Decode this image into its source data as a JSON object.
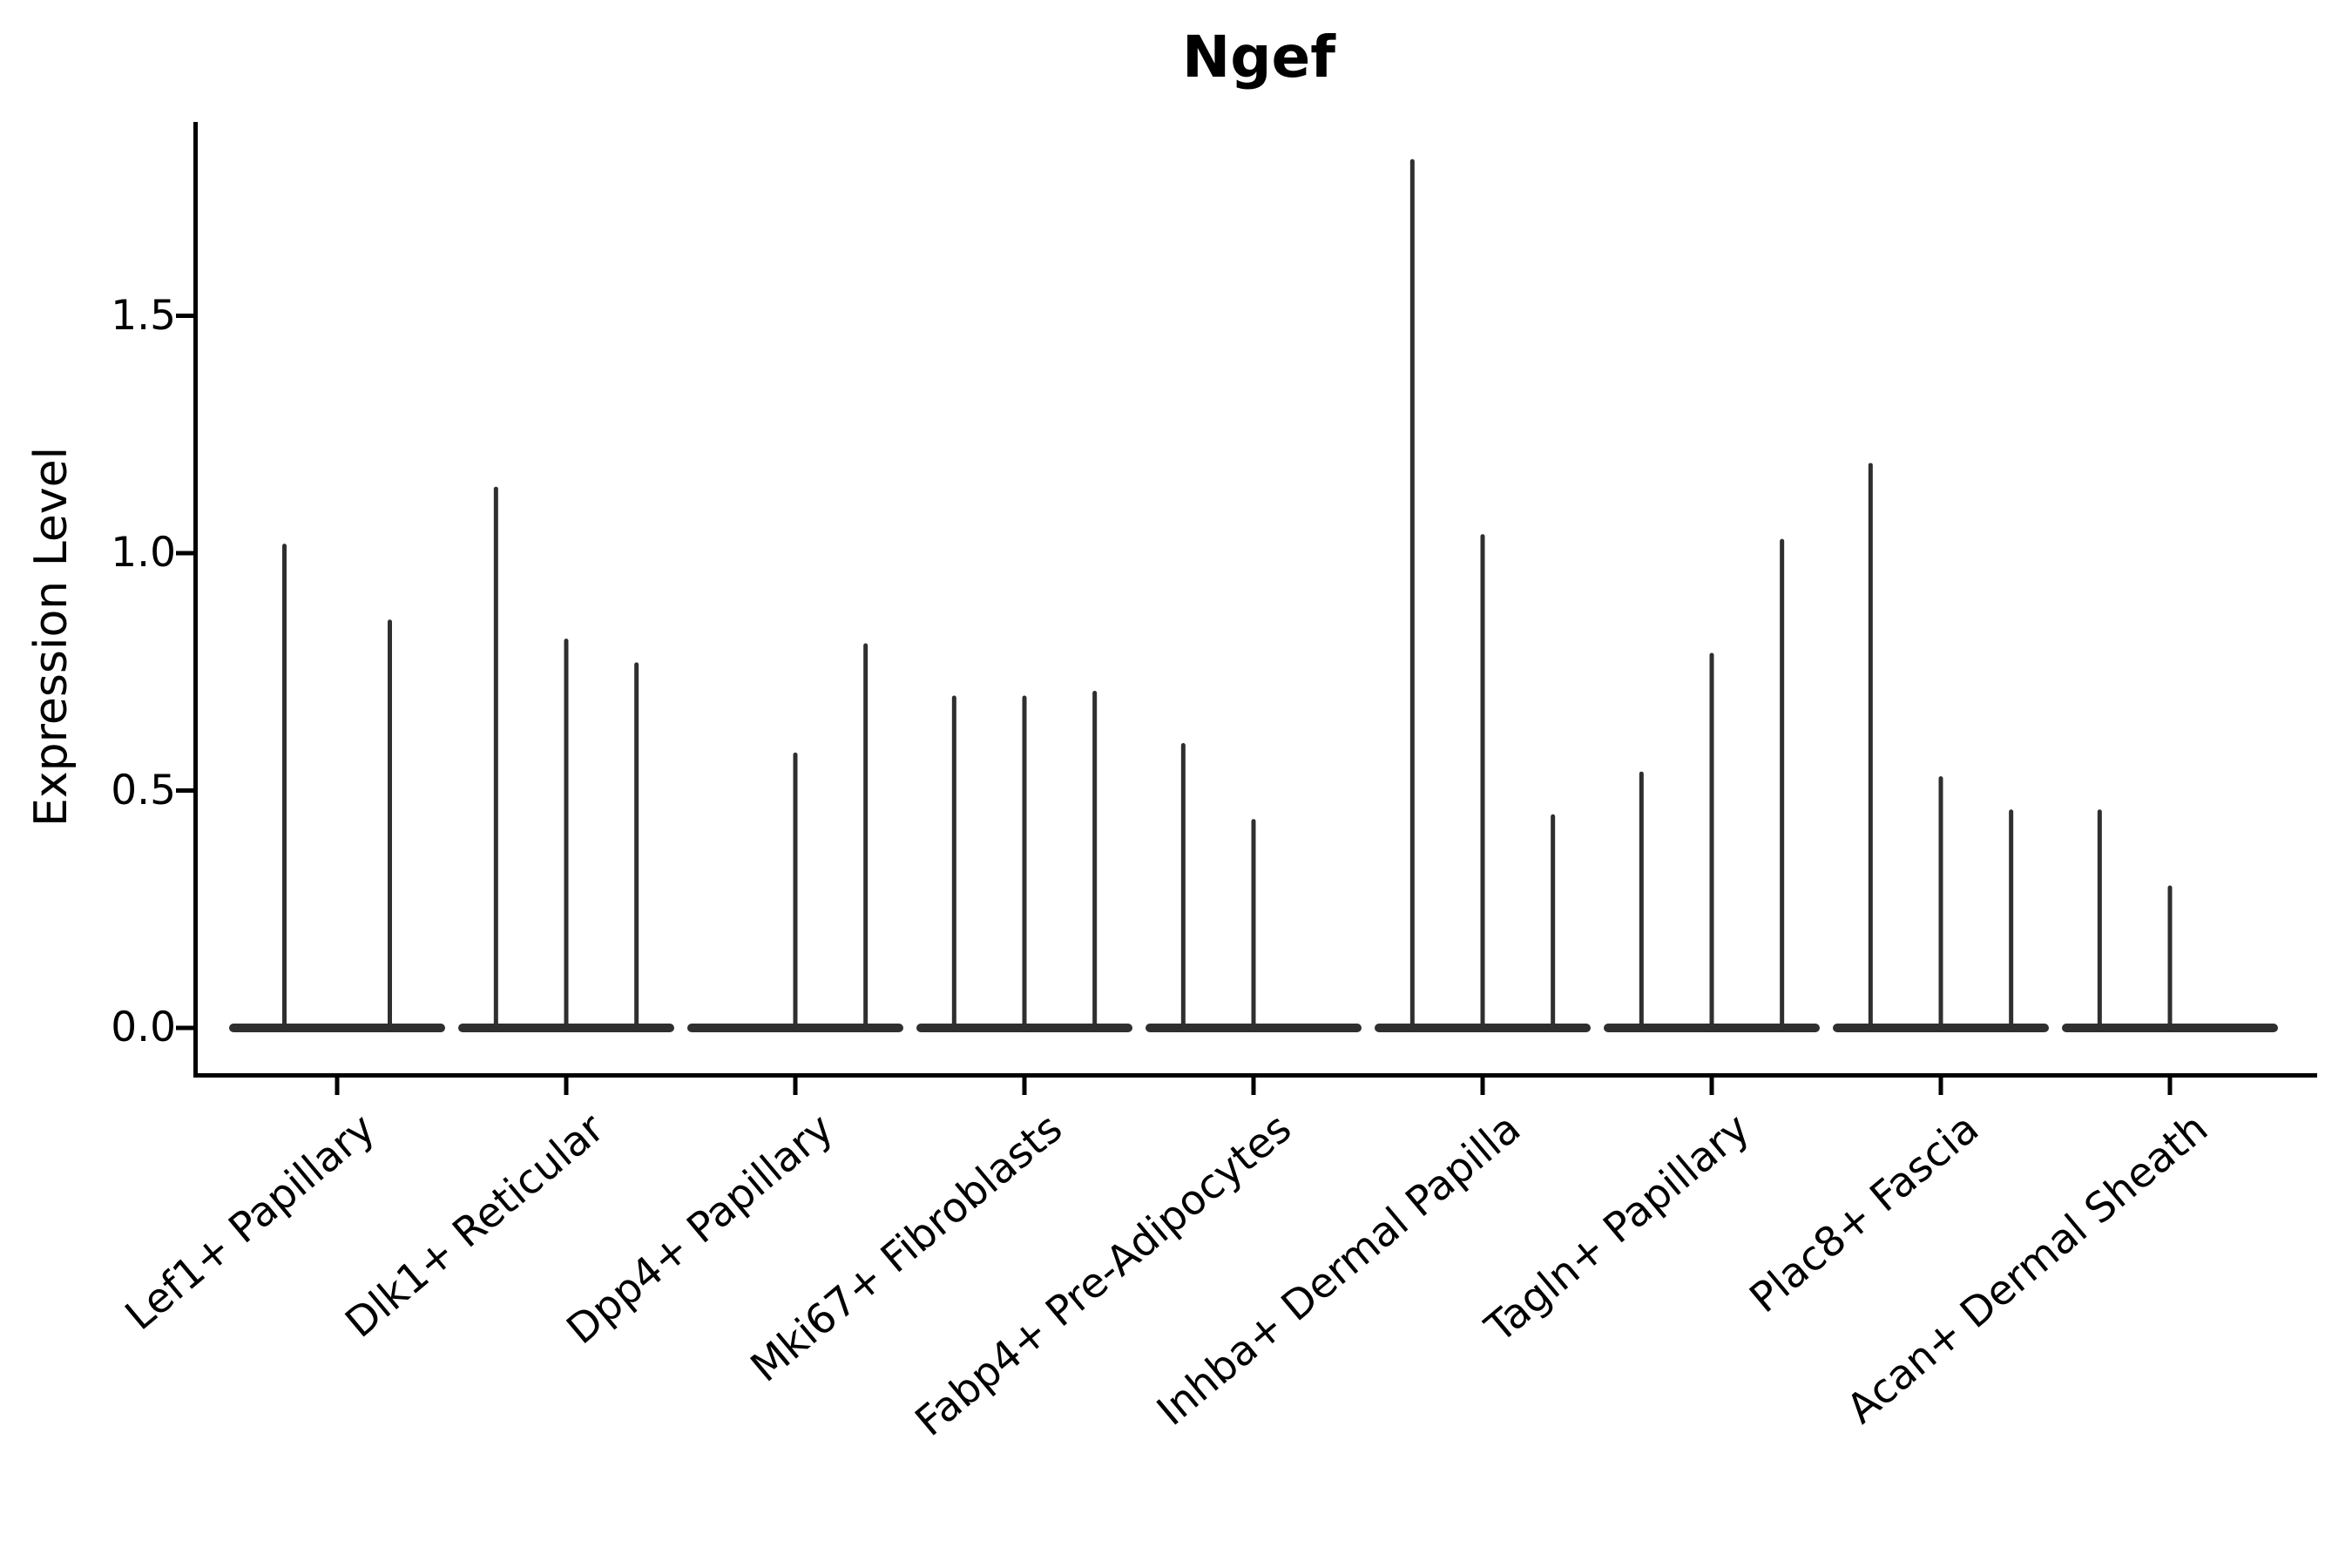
{
  "figure": {
    "title": "Ngef",
    "background_color": "#ffffff",
    "text_color": "#000000",
    "axis_color": "#000000",
    "violin_color": "#2f2f2f"
  },
  "chart_data": {
    "type": "violin",
    "title": "Ngef",
    "xlabel": "",
    "ylabel": "Expression Level",
    "ylim": [
      -0.1,
      1.91
    ],
    "yticks": [
      0.0,
      0.5,
      1.0,
      1.5
    ],
    "ytick_labels": [
      "0.0",
      "0.5",
      "1.0",
      "1.5"
    ],
    "grid": false,
    "legend": "none",
    "categories": [
      "Lef1+ Papillary",
      "Dlk1+ Reticular",
      "Dpp4+ Papillary",
      "Mki67+ Fibroblasts",
      "Fabp4+ Pre-Adipocytes",
      "Inhba+ Dermal Papilla",
      "Tagln+ Papillary",
      "Plac8+ Fascia",
      "Acan+ Dermal Sheath"
    ],
    "groups": [
      {
        "category": "Lef1+ Papillary",
        "violin_peaks": [
          1.02,
          0.86
        ]
      },
      {
        "category": "Dlk1+ Reticular",
        "violin_peaks": [
          1.14,
          0.82,
          0.77
        ]
      },
      {
        "category": "Dpp4+ Papillary",
        "violin_peaks": [
          0.0,
          0.58,
          0.81
        ]
      },
      {
        "category": "Mki67+ Fibroblasts",
        "violin_peaks": [
          0.7,
          0.7,
          0.71
        ]
      },
      {
        "category": "Fabp4+ Pre-Adipocytes",
        "violin_peaks": [
          0.6,
          0.44,
          0.0
        ]
      },
      {
        "category": "Inhba+ Dermal Papilla",
        "violin_peaks": [
          1.83,
          1.04,
          0.45
        ]
      },
      {
        "category": "Tagln+ Papillary",
        "violin_peaks": [
          0.54,
          0.79,
          1.03
        ]
      },
      {
        "category": "Plac8+ Fascia",
        "violin_peaks": [
          1.19,
          0.53,
          0.46
        ]
      },
      {
        "category": "Acan+ Dermal Sheath",
        "violin_peaks": [
          0.46,
          0.3,
          0.0
        ]
      }
    ],
    "notes": "Violins collapsed to a flat line at 0 with thin spikes up to the peak expression value; a peak of 0.0 means a flat violin with no spike."
  }
}
